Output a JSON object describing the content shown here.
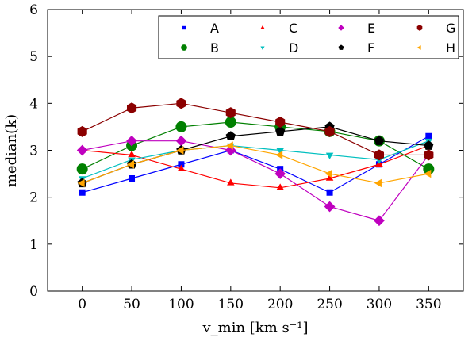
{
  "chart_data": {
    "type": "line",
    "xlabel": "v_min [km s⁻¹]",
    "ylabel": "median(k)",
    "xlim": [
      -35,
      385
    ],
    "ylim": [
      0,
      6
    ],
    "x": [
      0,
      50,
      100,
      150,
      200,
      250,
      300,
      350
    ],
    "x_tick_labels": [
      "0",
      "50",
      "100",
      "150",
      "200",
      "250",
      "300",
      "350"
    ],
    "y_ticks": [
      0,
      1,
      2,
      3,
      4,
      5,
      6
    ],
    "y_tick_labels": [
      "0",
      "1",
      "2",
      "3",
      "4",
      "5",
      "6"
    ],
    "legend_position": "top-right",
    "series": [
      {
        "name": "A",
        "color": "#0000ff",
        "marker": "square",
        "values": [
          2.1,
          2.4,
          2.7,
          3.0,
          2.6,
          2.1,
          2.7,
          3.3
        ]
      },
      {
        "name": "B",
        "color": "#008000",
        "marker": "circle",
        "values": [
          2.6,
          3.1,
          3.5,
          3.6,
          3.5,
          3.4,
          3.2,
          2.6
        ]
      },
      {
        "name": "C",
        "color": "#ff0000",
        "marker": "triangle-up",
        "values": [
          3.0,
          2.9,
          2.6,
          2.3,
          2.2,
          2.4,
          2.7,
          3.1
        ]
      },
      {
        "name": "D",
        "color": "#00bfbf",
        "marker": "triangle-down",
        "values": [
          2.4,
          2.8,
          3.0,
          3.1,
          3.0,
          2.9,
          2.8,
          3.2
        ]
      },
      {
        "name": "E",
        "color": "#bf00bf",
        "marker": "diamond",
        "values": [
          3.0,
          3.2,
          3.2,
          3.0,
          2.5,
          1.8,
          1.5,
          2.9
        ]
      },
      {
        "name": "F",
        "color": "#000000",
        "marker": "pentagon",
        "values": [
          2.3,
          2.7,
          3.0,
          3.3,
          3.4,
          3.5,
          3.2,
          3.1
        ]
      },
      {
        "name": "G",
        "color": "#8b0000",
        "marker": "hexagon",
        "values": [
          3.4,
          3.9,
          4.0,
          3.8,
          3.6,
          3.4,
          2.9,
          2.9
        ]
      },
      {
        "name": "H",
        "color": "#ffa500",
        "marker": "triangle-left",
        "values": [
          2.3,
          2.7,
          3.0,
          3.1,
          2.9,
          2.5,
          2.3,
          2.5
        ]
      }
    ]
  }
}
